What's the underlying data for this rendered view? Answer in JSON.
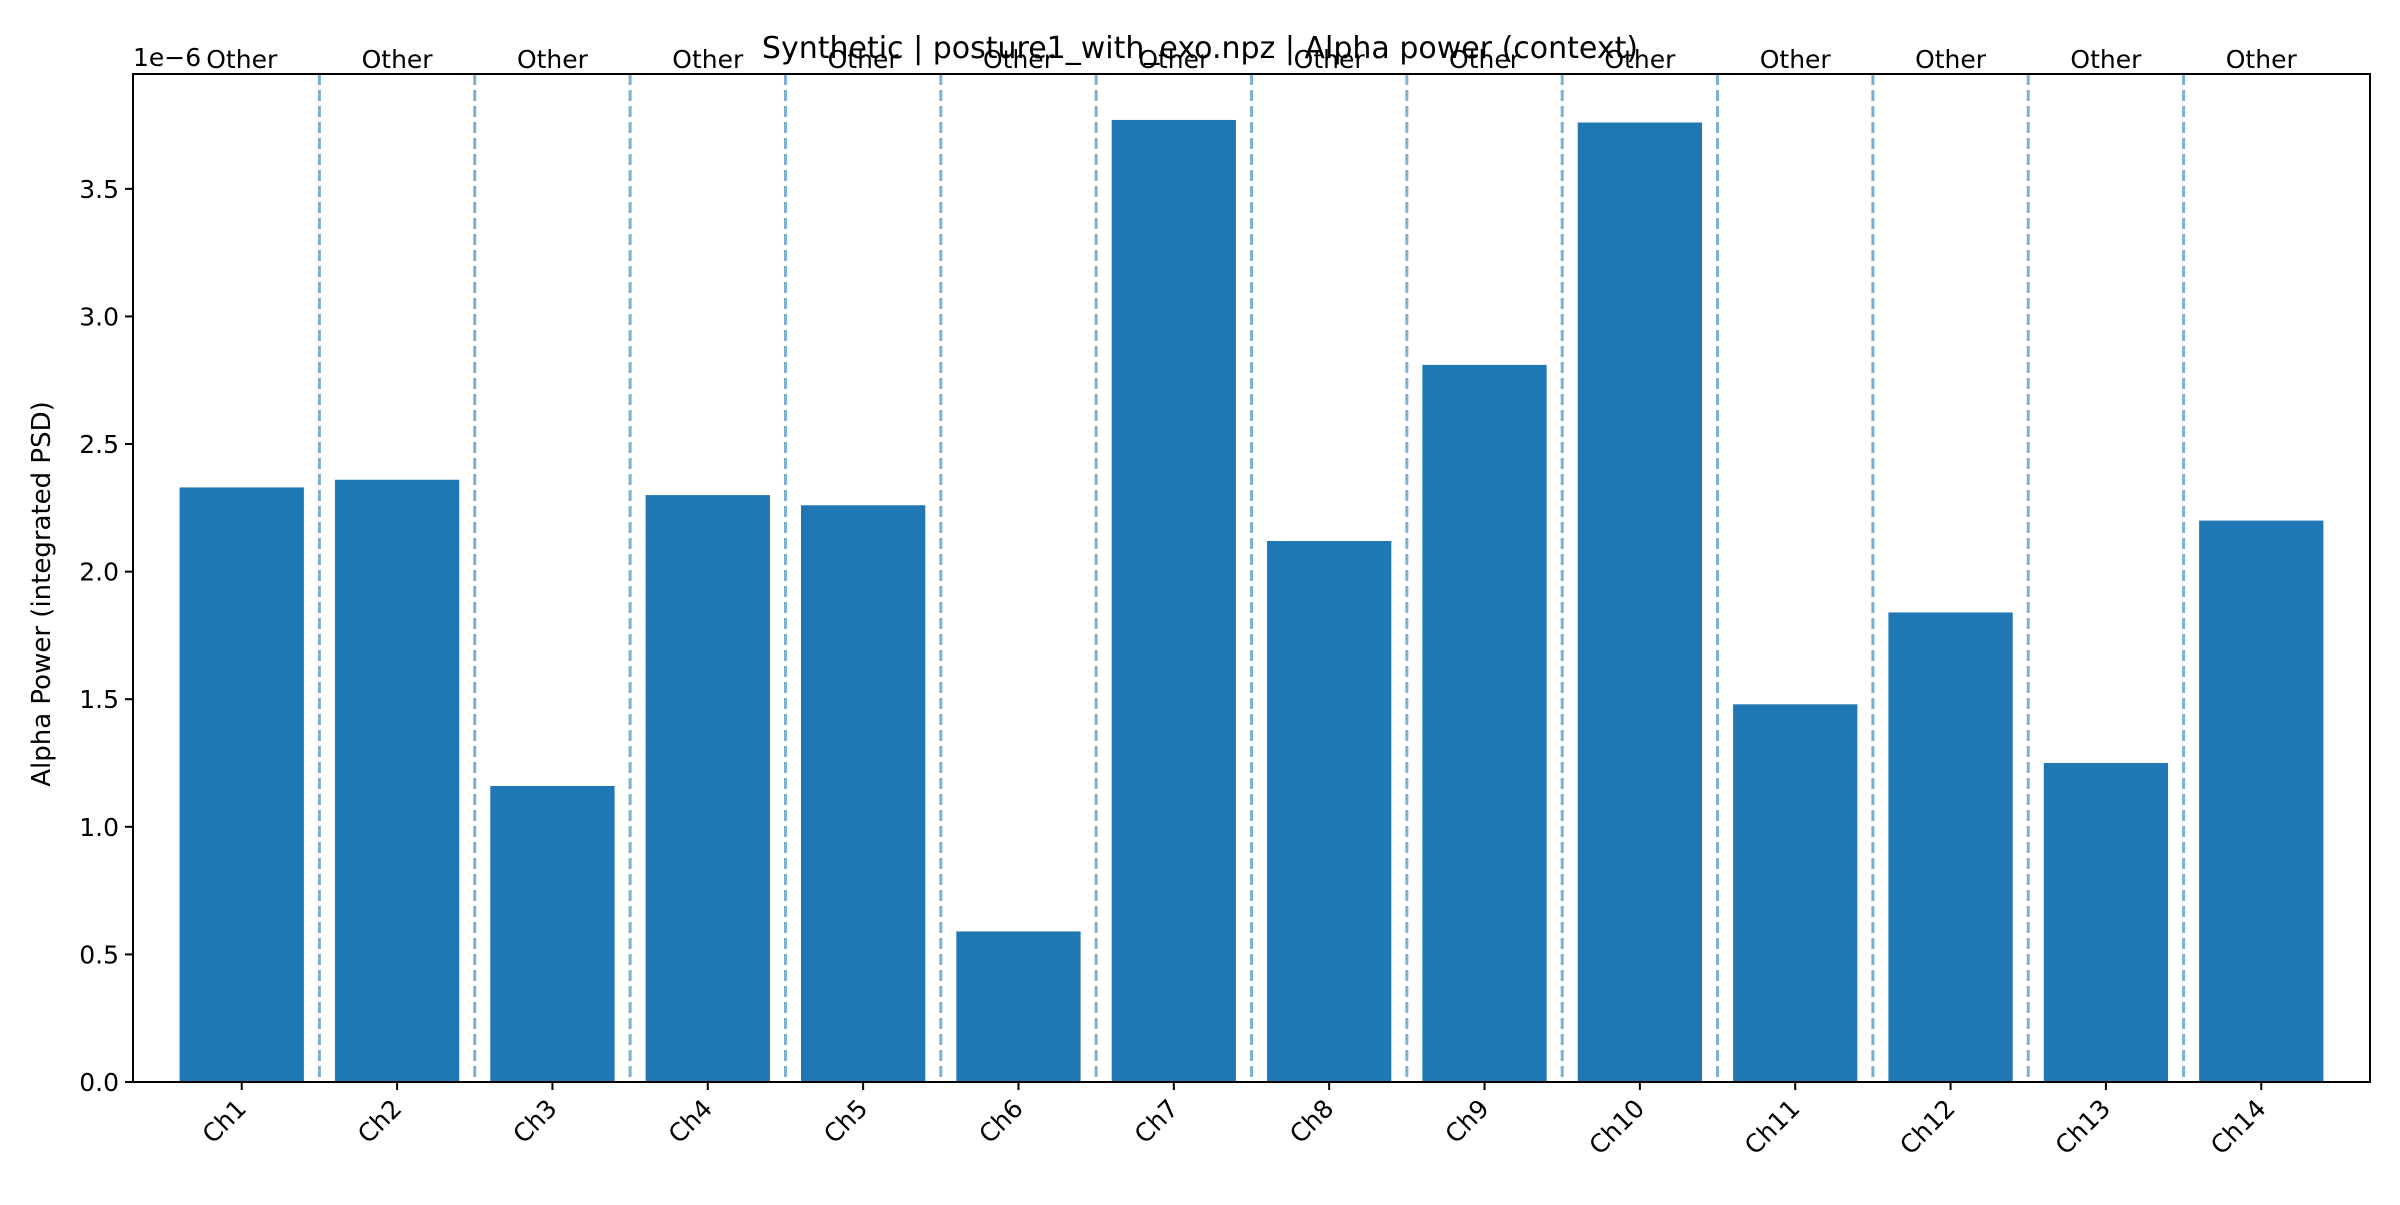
{
  "chart_data": {
    "type": "bar",
    "title": "Synthetic | posture1_with_exo.npz | Alpha power (context)",
    "xlabel": "",
    "ylabel": "Alpha Power (integrated PSD)",
    "y_scale_label": "1e−6",
    "y_multiplier": 1e-06,
    "ylim": [
      0,
      3.95
    ],
    "yticks": [
      0.0,
      0.5,
      1.0,
      1.5,
      2.0,
      2.5,
      3.0,
      3.5
    ],
    "ytick_labels": [
      "0.0",
      "0.5",
      "1.0",
      "1.5",
      "2.0",
      "2.5",
      "3.0",
      "3.5"
    ],
    "categories": [
      "Ch1",
      "Ch2",
      "Ch3",
      "Ch4",
      "Ch5",
      "Ch6",
      "Ch7",
      "Ch8",
      "Ch9",
      "Ch10",
      "Ch11",
      "Ch12",
      "Ch13",
      "Ch14"
    ],
    "values": [
      2.33,
      2.36,
      1.16,
      2.3,
      2.26,
      0.59,
      3.77,
      2.12,
      2.81,
      3.76,
      1.48,
      1.84,
      1.25,
      2.2
    ],
    "group_labels": [
      "Other",
      "Other",
      "Other",
      "Other",
      "Other",
      "Other",
      "Other",
      "Other",
      "Other",
      "Other",
      "Other",
      "Other",
      "Other",
      "Other"
    ],
    "bar_color": "#1f77b4",
    "separator_color": "#7bafd4",
    "separators": "dashed vertical lines between channels",
    "grid": false,
    "legend": "none"
  }
}
